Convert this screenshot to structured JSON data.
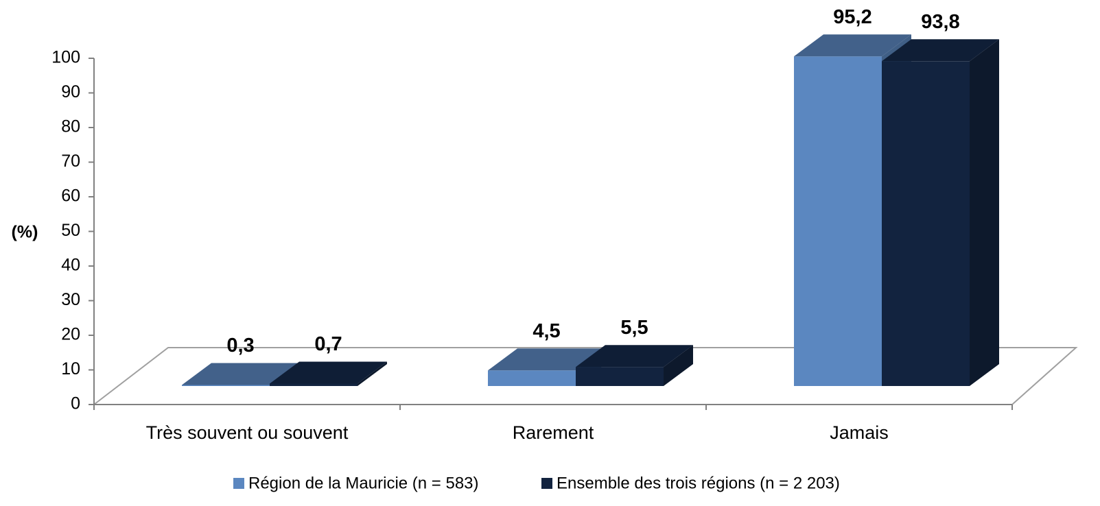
{
  "chart_data": {
    "type": "bar3d",
    "y_label": "(%)",
    "categories": [
      "Très souvent ou souvent",
      "Rarement",
      "Jamais"
    ],
    "series": [
      {
        "name": "Région de la Mauricie (n = 583)",
        "color": "#5b87c0",
        "values": [
          0.3,
          4.5,
          95.2
        ],
        "value_labels": [
          "0,3",
          "4,5",
          "95,2"
        ]
      },
      {
        "name": "Ensemble des trois régions (n = 2 203)",
        "color": "#12233f",
        "values": [
          0.7,
          5.5,
          93.8
        ],
        "value_labels": [
          "0,7",
          "5,5",
          "93,8"
        ]
      }
    ],
    "ylim": [
      0,
      100
    ],
    "yticks": [
      0,
      10,
      20,
      30,
      40,
      50,
      60,
      70,
      80,
      90,
      100
    ]
  }
}
